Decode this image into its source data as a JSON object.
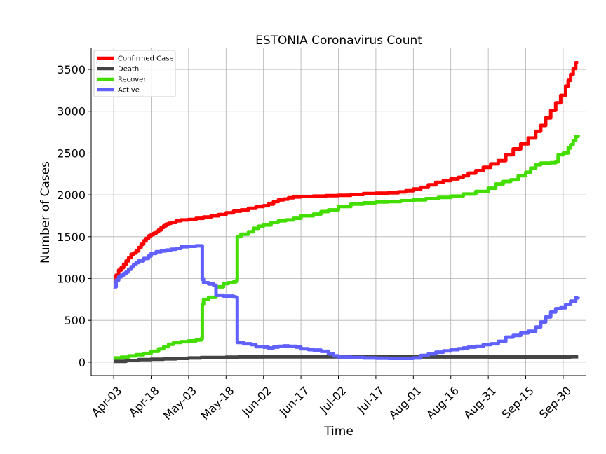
{
  "chart_data": {
    "type": "line",
    "title": "ESTONIA Coronavirus Count",
    "xlabel": "Time",
    "ylabel": "Number of Cases",
    "x_unit": "days since Apr-03",
    "xlim": [
      -9,
      189
    ],
    "ylim": [
      -160,
      3760
    ],
    "yticks": [
      0,
      500,
      1000,
      1500,
      2000,
      2500,
      3000,
      3500
    ],
    "xticks": [
      {
        "day": 0,
        "label": "Apr-03"
      },
      {
        "day": 15,
        "label": "Apr-18"
      },
      {
        "day": 30,
        "label": "May-03"
      },
      {
        "day": 45,
        "label": "May-18"
      },
      {
        "day": 60,
        "label": "Jun-02"
      },
      {
        "day": 75,
        "label": "Jun-17"
      },
      {
        "day": 90,
        "label": "Jul-02"
      },
      {
        "day": 105,
        "label": "Jul-17"
      },
      {
        "day": 120,
        "label": "Aug-01"
      },
      {
        "day": 135,
        "label": "Aug-16"
      },
      {
        "day": 150,
        "label": "Aug-31"
      },
      {
        "day": 165,
        "label": "Sep-15"
      },
      {
        "day": 180,
        "label": "Sep-30"
      }
    ],
    "grid": true,
    "legend_position": "top-left",
    "series": [
      {
        "name": "Confirmed Case",
        "color": "#ff0000",
        "points": [
          [
            0,
            960
          ],
          [
            1,
            1040
          ],
          [
            2,
            1100
          ],
          [
            3,
            1130
          ],
          [
            4,
            1170
          ],
          [
            5,
            1210
          ],
          [
            6,
            1250
          ],
          [
            7,
            1290
          ],
          [
            8,
            1305
          ],
          [
            9,
            1330
          ],
          [
            10,
            1370
          ],
          [
            11,
            1410
          ],
          [
            12,
            1450
          ],
          [
            13,
            1480
          ],
          [
            14,
            1510
          ],
          [
            15,
            1525
          ],
          [
            16,
            1540
          ],
          [
            17,
            1560
          ],
          [
            18,
            1580
          ],
          [
            19,
            1610
          ],
          [
            20,
            1630
          ],
          [
            21,
            1650
          ],
          [
            22,
            1660
          ],
          [
            23,
            1670
          ],
          [
            25,
            1690
          ],
          [
            27,
            1700
          ],
          [
            30,
            1705
          ],
          [
            33,
            1720
          ],
          [
            36,
            1735
          ],
          [
            39,
            1750
          ],
          [
            42,
            1765
          ],
          [
            45,
            1785
          ],
          [
            48,
            1805
          ],
          [
            51,
            1820
          ],
          [
            54,
            1840
          ],
          [
            57,
            1860
          ],
          [
            60,
            1870
          ],
          [
            62,
            1890
          ],
          [
            64,
            1920
          ],
          [
            66,
            1940
          ],
          [
            68,
            1950
          ],
          [
            70,
            1965
          ],
          [
            72,
            1975
          ],
          [
            75,
            1980
          ],
          [
            80,
            1985
          ],
          [
            85,
            1990
          ],
          [
            90,
            1995
          ],
          [
            95,
            2005
          ],
          [
            100,
            2015
          ],
          [
            105,
            2020
          ],
          [
            110,
            2025
          ],
          [
            114,
            2035
          ],
          [
            117,
            2050
          ],
          [
            120,
            2070
          ],
          [
            123,
            2090
          ],
          [
            126,
            2120
          ],
          [
            129,
            2150
          ],
          [
            132,
            2170
          ],
          [
            135,
            2190
          ],
          [
            138,
            2210
          ],
          [
            140,
            2230
          ],
          [
            142,
            2260
          ],
          [
            145,
            2290
          ],
          [
            148,
            2330
          ],
          [
            151,
            2370
          ],
          [
            154,
            2410
          ],
          [
            157,
            2480
          ],
          [
            160,
            2550
          ],
          [
            163,
            2610
          ],
          [
            166,
            2680
          ],
          [
            169,
            2760
          ],
          [
            171,
            2830
          ],
          [
            173,
            2920
          ],
          [
            175,
            3010
          ],
          [
            177,
            3100
          ],
          [
            179,
            3190
          ],
          [
            181,
            3300
          ],
          [
            182,
            3370
          ],
          [
            183,
            3440
          ],
          [
            184,
            3510
          ],
          [
            185,
            3580
          ],
          [
            186,
            3580
          ]
        ]
      },
      {
        "name": "Death",
        "color": "#444444",
        "points": [
          [
            0,
            10
          ],
          [
            5,
            20
          ],
          [
            10,
            30
          ],
          [
            15,
            35
          ],
          [
            20,
            40
          ],
          [
            25,
            45
          ],
          [
            30,
            50
          ],
          [
            35,
            55
          ],
          [
            45,
            60
          ],
          [
            50,
            63
          ],
          [
            60,
            64
          ],
          [
            90,
            64
          ],
          [
            120,
            63
          ],
          [
            150,
            62
          ],
          [
            180,
            62
          ],
          [
            183,
            65
          ],
          [
            186,
            65
          ]
        ]
      },
      {
        "name": "Recover",
        "color": "#44dd00",
        "points": [
          [
            0,
            50
          ],
          [
            3,
            60
          ],
          [
            6,
            75
          ],
          [
            9,
            90
          ],
          [
            12,
            105
          ],
          [
            15,
            130
          ],
          [
            18,
            160
          ],
          [
            20,
            185
          ],
          [
            22,
            215
          ],
          [
            24,
            235
          ],
          [
            27,
            245
          ],
          [
            30,
            255
          ],
          [
            33,
            265
          ],
          [
            35,
            280
          ],
          [
            35.5,
            690
          ],
          [
            36,
            750
          ],
          [
            38,
            775
          ],
          [
            41,
            900
          ],
          [
            44,
            940
          ],
          [
            46,
            950
          ],
          [
            48,
            960
          ],
          [
            49,
            975
          ],
          [
            49.5,
            1500
          ],
          [
            51,
            1530
          ],
          [
            54,
            1560
          ],
          [
            56,
            1600
          ],
          [
            58,
            1625
          ],
          [
            60,
            1640
          ],
          [
            63,
            1670
          ],
          [
            66,
            1690
          ],
          [
            69,
            1700
          ],
          [
            72,
            1720
          ],
          [
            75,
            1750
          ],
          [
            80,
            1770
          ],
          [
            83,
            1800
          ],
          [
            86,
            1820
          ],
          [
            90,
            1860
          ],
          [
            95,
            1890
          ],
          [
            100,
            1905
          ],
          [
            105,
            1915
          ],
          [
            110,
            1920
          ],
          [
            115,
            1930
          ],
          [
            120,
            1940
          ],
          [
            125,
            1955
          ],
          [
            130,
            1970
          ],
          [
            135,
            1985
          ],
          [
            140,
            2010
          ],
          [
            145,
            2040
          ],
          [
            150,
            2080
          ],
          [
            153,
            2130
          ],
          [
            156,
            2160
          ],
          [
            159,
            2180
          ],
          [
            162,
            2230
          ],
          [
            165,
            2270
          ],
          [
            167,
            2320
          ],
          [
            169,
            2360
          ],
          [
            171,
            2380
          ],
          [
            175,
            2385
          ],
          [
            177,
            2395
          ],
          [
            178,
            2480
          ],
          [
            180,
            2500
          ],
          [
            182,
            2560
          ],
          [
            183,
            2600
          ],
          [
            184,
            2650
          ],
          [
            185,
            2700
          ],
          [
            186,
            2720
          ]
        ]
      },
      {
        "name": "Active",
        "color": "#6060ff",
        "points": [
          [
            0,
            900
          ],
          [
            1,
            980
          ],
          [
            2,
            1020
          ],
          [
            3,
            1040
          ],
          [
            4,
            1060
          ],
          [
            5,
            1080
          ],
          [
            6,
            1110
          ],
          [
            7,
            1140
          ],
          [
            8,
            1170
          ],
          [
            9,
            1190
          ],
          [
            10,
            1210
          ],
          [
            12,
            1240
          ],
          [
            14,
            1270
          ],
          [
            15,
            1300
          ],
          [
            17,
            1320
          ],
          [
            19,
            1330
          ],
          [
            21,
            1340
          ],
          [
            23,
            1350
          ],
          [
            25,
            1360
          ],
          [
            27,
            1380
          ],
          [
            30,
            1385
          ],
          [
            33,
            1390
          ],
          [
            35,
            1390
          ],
          [
            35.5,
            990
          ],
          [
            36,
            950
          ],
          [
            38,
            935
          ],
          [
            40,
            920
          ],
          [
            41,
            800
          ],
          [
            44,
            790
          ],
          [
            46,
            790
          ],
          [
            48,
            780
          ],
          [
            49,
            775
          ],
          [
            49.5,
            235
          ],
          [
            52,
            220
          ],
          [
            55,
            210
          ],
          [
            57,
            185
          ],
          [
            60,
            180
          ],
          [
            62,
            170
          ],
          [
            64,
            180
          ],
          [
            66,
            190
          ],
          [
            68,
            195
          ],
          [
            70,
            190
          ],
          [
            73,
            180
          ],
          [
            75,
            160
          ],
          [
            78,
            150
          ],
          [
            80,
            145
          ],
          [
            83,
            130
          ],
          [
            86,
            100
          ],
          [
            88,
            75
          ],
          [
            90,
            60
          ],
          [
            95,
            55
          ],
          [
            100,
            50
          ],
          [
            105,
            48
          ],
          [
            110,
            45
          ],
          [
            115,
            45
          ],
          [
            120,
            50
          ],
          [
            123,
            80
          ],
          [
            126,
            100
          ],
          [
            129,
            120
          ],
          [
            132,
            135
          ],
          [
            135,
            150
          ],
          [
            138,
            160
          ],
          [
            140,
            170
          ],
          [
            142,
            180
          ],
          [
            145,
            190
          ],
          [
            148,
            210
          ],
          [
            151,
            220
          ],
          [
            154,
            250
          ],
          [
            157,
            300
          ],
          [
            160,
            320
          ],
          [
            163,
            350
          ],
          [
            166,
            370
          ],
          [
            169,
            420
          ],
          [
            171,
            480
          ],
          [
            173,
            540
          ],
          [
            175,
            600
          ],
          [
            177,
            640
          ],
          [
            179,
            650
          ],
          [
            181,
            690
          ],
          [
            183,
            730
          ],
          [
            185,
            770
          ],
          [
            186,
            780
          ]
        ]
      }
    ]
  }
}
